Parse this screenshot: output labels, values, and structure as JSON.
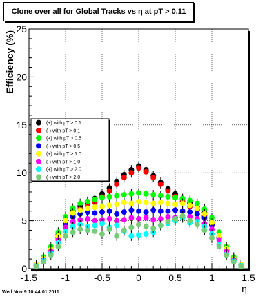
{
  "chart_data": {
    "type": "scatter",
    "title": "Clone  over all for Global Tracks vs η at pT > 0.11",
    "xlabel": "η",
    "ylabel": "Efficiency (%)",
    "xlim": [
      -1.5,
      1.5
    ],
    "ylim": [
      0,
      25
    ],
    "xticks": [
      -1.5,
      -1,
      -0.5,
      0,
      0.5,
      1,
      1.5
    ],
    "xtick_labels": [
      "-1.5",
      "-1",
      "-0.5",
      "0",
      "0.5",
      "1",
      "1.5"
    ],
    "yticks": [
      0,
      5,
      10,
      15,
      20,
      25
    ],
    "ytick_labels": [
      "0",
      "5",
      "10",
      "15",
      "20",
      "25"
    ],
    "grid": true,
    "legend_position": "center-left",
    "footer": "Wed Nov  9 10:44:01 2011",
    "series": [
      {
        "name": "(+) with pT > 0.1",
        "color": "#000000",
        "x": [
          -1.4,
          -1.3,
          -1.2,
          -1.1,
          -1.0,
          -0.9,
          -0.8,
          -0.7,
          -0.6,
          -0.5,
          -0.4,
          -0.3,
          -0.2,
          -0.1,
          0.0,
          0.1,
          0.2,
          0.3,
          0.4,
          0.5,
          0.6,
          0.7,
          0.8,
          0.9,
          1.0,
          1.1,
          1.2,
          1.3,
          1.4
        ],
        "y": [
          0.4,
          1.0,
          2.0,
          3.5,
          5.0,
          6.0,
          6.5,
          6.8,
          7.3,
          7.8,
          8.4,
          9.1,
          9.8,
          10.3,
          10.7,
          10.3,
          9.7,
          9.0,
          8.3,
          7.8,
          7.3,
          6.8,
          6.4,
          5.8,
          4.8,
          3.3,
          2.0,
          1.0,
          0.4
        ]
      },
      {
        "name": "(-) with pT > 0.1",
        "color": "#ff0000",
        "x": [
          -1.4,
          -1.3,
          -1.2,
          -1.1,
          -1.0,
          -0.9,
          -0.8,
          -0.7,
          -0.6,
          -0.5,
          -0.4,
          -0.3,
          -0.2,
          -0.1,
          0.0,
          0.1,
          0.2,
          0.3,
          0.4,
          0.5,
          0.6,
          0.7,
          0.8,
          0.9,
          1.0,
          1.1,
          1.2,
          1.3,
          1.4
        ],
        "y": [
          0.3,
          0.9,
          1.8,
          3.3,
          4.8,
          5.7,
          6.2,
          6.5,
          6.9,
          7.5,
          8.1,
          8.8,
          9.5,
          10.0,
          10.5,
          10.1,
          9.5,
          8.8,
          8.1,
          7.5,
          7.0,
          6.5,
          6.1,
          5.5,
          4.6,
          3.2,
          1.9,
          0.9,
          0.3
        ]
      },
      {
        "name": "(+) with pT > 0.5",
        "color": "#00ff00",
        "x": [
          -1.4,
          -1.3,
          -1.2,
          -1.1,
          -1.0,
          -0.9,
          -0.8,
          -0.7,
          -0.6,
          -0.5,
          -0.4,
          -0.3,
          -0.2,
          -0.1,
          0.0,
          0.1,
          0.2,
          0.3,
          0.4,
          0.5,
          0.6,
          0.7,
          0.8,
          0.9,
          1.0,
          1.1,
          1.2,
          1.3,
          1.4
        ],
        "y": [
          0.4,
          1.2,
          2.3,
          3.8,
          5.4,
          6.3,
          6.8,
          7.0,
          7.2,
          7.4,
          7.5,
          7.6,
          7.7,
          7.8,
          7.9,
          7.8,
          7.7,
          7.6,
          7.5,
          7.4,
          7.3,
          7.1,
          6.8,
          6.2,
          5.3,
          3.8,
          2.3,
          1.2,
          0.4
        ]
      },
      {
        "name": "(-) with pT > 0.5",
        "color": "#0000ff",
        "x": [
          -1.4,
          -1.3,
          -1.2,
          -1.1,
          -1.0,
          -0.9,
          -0.8,
          -0.7,
          -0.6,
          -0.5,
          -0.4,
          -0.3,
          -0.2,
          -0.1,
          0.0,
          0.1,
          0.2,
          0.3,
          0.4,
          0.5,
          0.6,
          0.7,
          0.8,
          0.9,
          1.0,
          1.1,
          1.2,
          1.3,
          1.4
        ],
        "y": [
          0.3,
          0.9,
          1.9,
          3.2,
          4.6,
          5.4,
          5.7,
          5.9,
          5.8,
          5.9,
          6.0,
          5.7,
          5.9,
          6.1,
          6.0,
          5.9,
          6.1,
          6.0,
          6.0,
          6.1,
          6.0,
          5.9,
          5.7,
          5.3,
          4.5,
          3.2,
          1.9,
          0.9,
          0.3
        ]
      },
      {
        "name": "(+) with pT > 1.0",
        "color": "#ffff00",
        "x": [
          -1.4,
          -1.3,
          -1.2,
          -1.1,
          -1.0,
          -0.9,
          -0.8,
          -0.7,
          -0.6,
          -0.5,
          -0.4,
          -0.3,
          -0.2,
          -0.1,
          0.0,
          0.1,
          0.2,
          0.3,
          0.4,
          0.5,
          0.6,
          0.7,
          0.8,
          0.9,
          1.0,
          1.1,
          1.2,
          1.3,
          1.4
        ],
        "y": [
          0.4,
          1.0,
          2.0,
          3.4,
          5.0,
          5.8,
          6.1,
          6.3,
          6.4,
          6.5,
          6.6,
          6.7,
          6.9,
          6.8,
          7.0,
          6.9,
          6.8,
          6.9,
          6.8,
          6.7,
          6.8,
          6.6,
          6.3,
          5.7,
          4.8,
          3.4,
          2.1,
          1.0,
          0.4
        ]
      },
      {
        "name": "(-) with pT > 1.0",
        "color": "#ff00ff",
        "x": [
          -1.4,
          -1.3,
          -1.2,
          -1.1,
          -1.0,
          -0.9,
          -0.8,
          -0.7,
          -0.6,
          -0.5,
          -0.4,
          -0.3,
          -0.2,
          -0.1,
          0.0,
          0.1,
          0.2,
          0.3,
          0.4,
          0.5,
          0.6,
          0.7,
          0.8,
          0.9,
          1.0,
          1.1,
          1.2,
          1.3,
          1.4
        ],
        "y": [
          0.3,
          0.9,
          1.8,
          3.0,
          4.3,
          4.9,
          5.1,
          5.2,
          5.0,
          5.1,
          5.2,
          5.0,
          5.1,
          5.3,
          5.2,
          5.3,
          5.1,
          5.2,
          5.4,
          5.3,
          5.4,
          5.4,
          5.2,
          4.7,
          4.1,
          3.0,
          1.8,
          0.9,
          0.3
        ]
      },
      {
        "name": "(+) with pT > 2.0",
        "color": "#00ffff",
        "x": [
          -1.4,
          -1.3,
          -1.2,
          -1.1,
          -1.0,
          -0.9,
          -0.8,
          -0.7,
          -0.6,
          -0.5,
          -0.4,
          -0.3,
          -0.2,
          -0.1,
          0.0,
          0.1,
          0.2,
          0.3,
          0.4,
          0.5,
          0.6,
          0.7,
          0.8,
          0.9,
          1.0,
          1.1,
          1.2,
          1.3,
          1.4
        ],
        "y": [
          0.3,
          0.8,
          1.6,
          2.7,
          3.9,
          4.4,
          4.6,
          4.4,
          4.5,
          4.7,
          4.3,
          4.5,
          3.9,
          3.4,
          3.5,
          3.6,
          3.8,
          4.5,
          4.7,
          5.0,
          5.3,
          4.8,
          4.9,
          4.4,
          3.6,
          2.5,
          1.5,
          0.8,
          0.3
        ]
      },
      {
        "name": "(-) with pT > 2.0",
        "color": "#77cc77",
        "x": [
          -1.4,
          -1.3,
          -1.2,
          -1.1,
          -1.0,
          -0.9,
          -0.8,
          -0.7,
          -0.6,
          -0.5,
          -0.4,
          -0.3,
          -0.2,
          -0.1,
          0.0,
          0.1,
          0.2,
          0.3,
          0.4,
          0.5,
          0.6,
          0.7,
          0.8,
          0.9,
          1.0,
          1.1,
          1.2,
          1.3,
          1.4
        ],
        "y": [
          0.2,
          0.7,
          1.4,
          2.3,
          3.4,
          3.8,
          4.1,
          4.0,
          3.9,
          3.6,
          4.1,
          3.4,
          4.0,
          4.3,
          4.6,
          4.4,
          4.2,
          4.5,
          4.9,
          5.2,
          5.5,
          5.0,
          4.6,
          4.0,
          3.2,
          2.3,
          1.4,
          0.7,
          0.2
        ]
      }
    ]
  }
}
